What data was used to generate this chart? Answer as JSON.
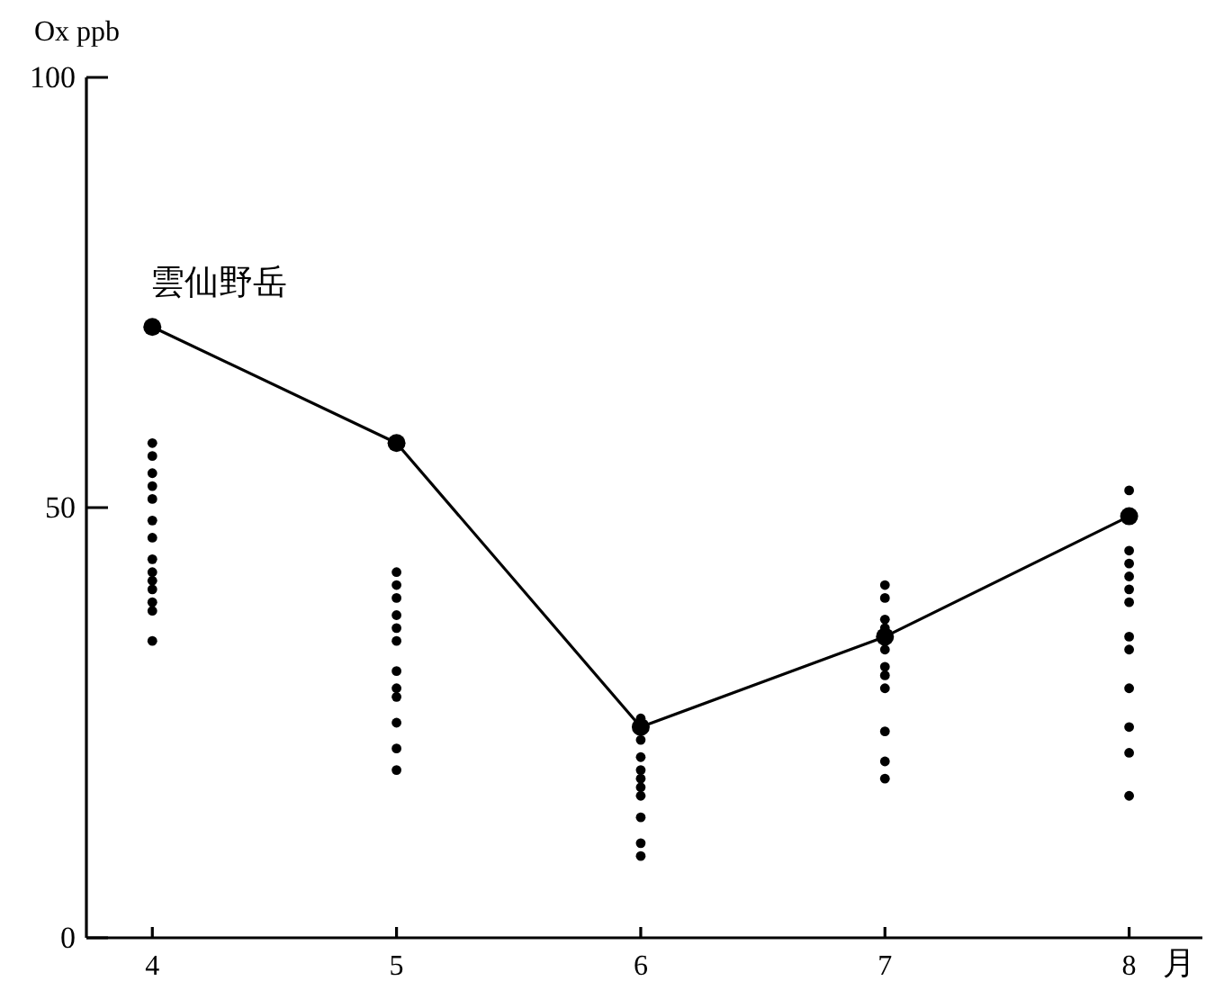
{
  "chart_data": {
    "type": "scatter",
    "ylabel": "Ox ppb",
    "xlabel": "月",
    "xlim": [
      3.73,
      8.3
    ],
    "xticks": [
      4,
      5,
      6,
      7,
      8
    ],
    "ylim": [
      0,
      100
    ],
    "yticks": [
      0,
      50,
      100
    ],
    "marker": "circle",
    "series": [
      {
        "color": "#000000",
        "x": [
          4,
          4,
          4,
          4,
          4,
          4,
          4,
          4,
          4,
          4,
          4,
          4,
          4,
          4,
          5,
          5,
          5,
          5,
          5,
          5,
          5,
          5,
          5,
          5,
          5,
          5,
          6,
          6,
          6,
          6,
          6,
          6,
          6,
          6,
          6,
          6,
          7,
          7,
          7,
          7,
          7,
          7,
          7,
          7,
          7,
          7,
          7,
          8,
          8,
          8,
          8,
          8,
          8,
          8,
          8,
          8,
          8,
          8,
          8
        ],
        "values": [
          57.5,
          56,
          54,
          52.5,
          51,
          48.5,
          46.5,
          44,
          42.5,
          41.5,
          40.5,
          39,
          38,
          34.5,
          42.5,
          41,
          39.5,
          37.5,
          36,
          34.5,
          31,
          29,
          28,
          25,
          22,
          19.5,
          25.5,
          23,
          21,
          19.5,
          18.5,
          17.5,
          16.5,
          14,
          11,
          9.5,
          41,
          39.5,
          37,
          36,
          33.5,
          31.5,
          30.5,
          29,
          24,
          20.5,
          18.5,
          52,
          45,
          43.5,
          42,
          40.5,
          39,
          35,
          33.5,
          29,
          24.5,
          21.5,
          16.5
        ]
      },
      {
        "type": "line",
        "name": "雲仙野岳",
        "color": "#000000",
        "x": [
          4,
          5,
          6,
          7,
          8
        ],
        "values": [
          71,
          57.5,
          24.5,
          35,
          49
        ]
      }
    ]
  }
}
